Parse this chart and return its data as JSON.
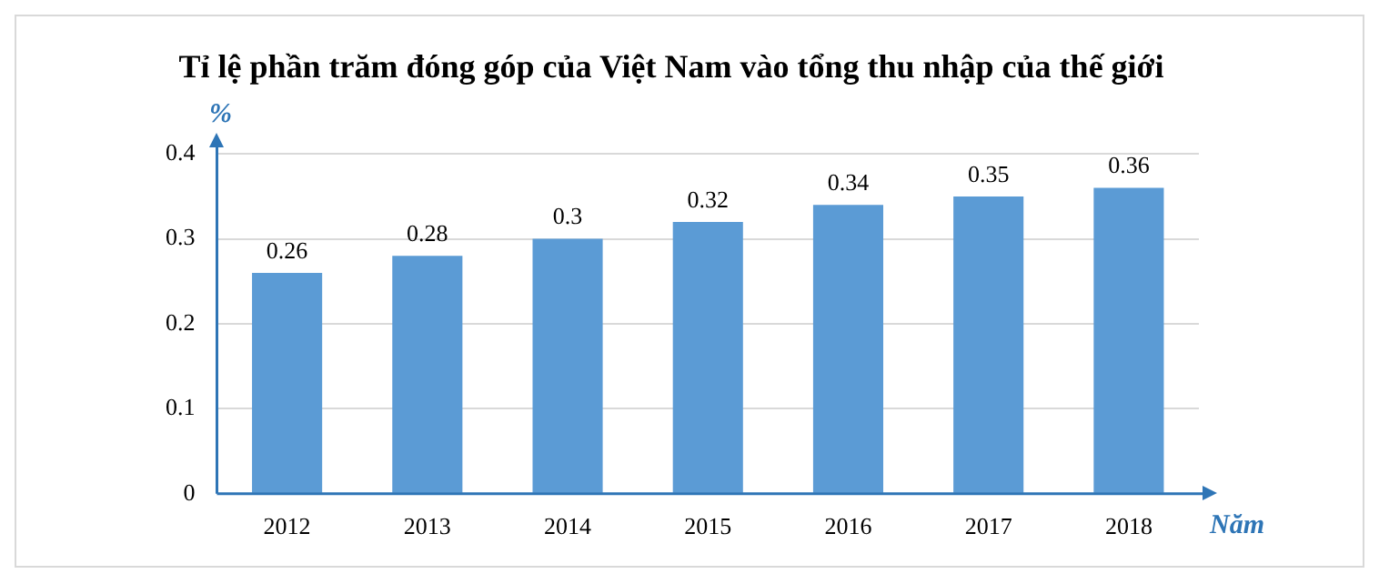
{
  "chart_data": {
    "type": "bar",
    "title": "Tỉ lệ phần trăm đóng góp của Việt Nam vào tổng thu nhập của thế giới",
    "xlabel": "Năm",
    "ylabel": "%",
    "categories": [
      "2012",
      "2013",
      "2014",
      "2015",
      "2016",
      "2017",
      "2018"
    ],
    "values": [
      0.26,
      0.28,
      0.3,
      0.32,
      0.34,
      0.35,
      0.36
    ],
    "color": "#5b9bd5",
    "ylim": [
      0,
      0.4
    ],
    "yticks": [
      0,
      0.1,
      0.2,
      0.3,
      0.4
    ],
    "grid": "y",
    "legend": false,
    "data_labels": true
  }
}
